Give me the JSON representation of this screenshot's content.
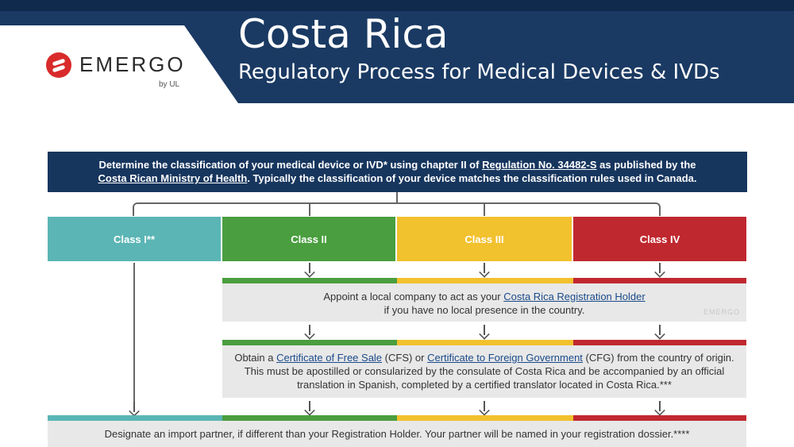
{
  "header": {
    "logo_text": "EMERGO",
    "logo_sub": "by UL",
    "title": "Costa Rica",
    "subtitle": "Regulatory Process for Medical Devices & IVDs"
  },
  "intro": {
    "text_1": "Determine the classification of your medical device or IVD* using chapter II of ",
    "link_1": "Regulation No. 34482-S",
    "text_2": " as published by the ",
    "link_2": "Costa Rican Ministry of Health",
    "text_3": ". Typically the classification of your device matches the classification rules used in Canada."
  },
  "classes": [
    {
      "label": "Class I**",
      "color": "#5bb5b5"
    },
    {
      "label": "Class II",
      "color": "#4a9e3f"
    },
    {
      "label": "Class III",
      "color": "#f2c12e"
    },
    {
      "label": "Class IV",
      "color": "#c0282f"
    }
  ],
  "steps": {
    "registration_holder": {
      "text_1": "Appoint a local company to act as your ",
      "link": "Costa Rica Registration Holder",
      "text_2": "if you have no local presence in the country.",
      "watermark": "EMERGO"
    },
    "certificate": {
      "text_1": "Obtain a ",
      "link_1": "Certificate of Free Sale",
      "text_2": " (CFS) or ",
      "link_2": "Certificate to Foreign Government",
      "text_3": " (CFG) from the country of origin. This must be apostilled or consularized by the consulate of Costa Rica and be accompanied by an official translation in Spanish, completed by a certified translator located in Costa Rica.***"
    },
    "import_partner": {
      "text": "Designate an import partner, if different than your Registration Holder. Your partner will be named in your registration dossier.****"
    }
  }
}
